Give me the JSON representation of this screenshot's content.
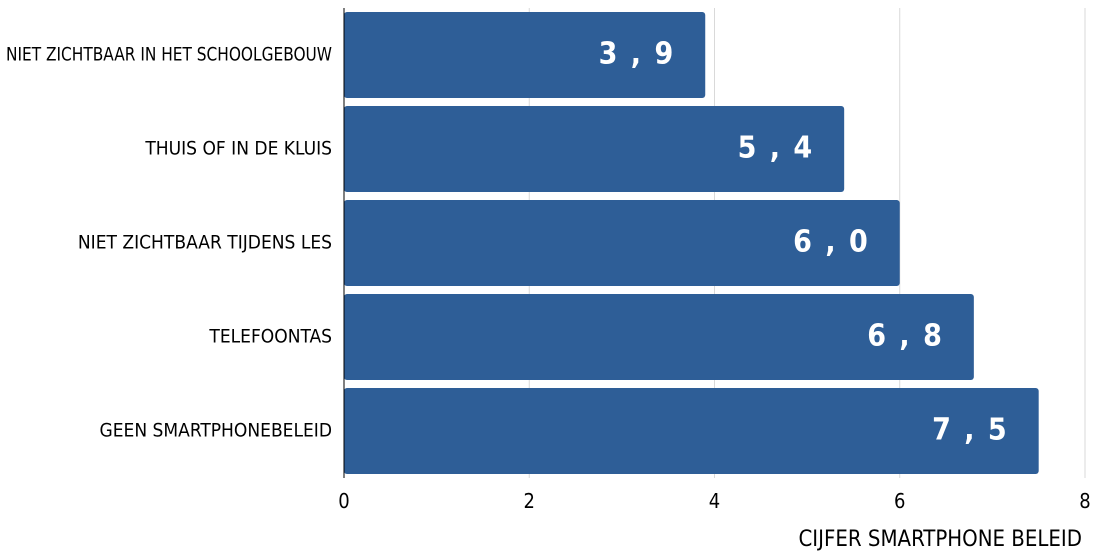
{
  "chart_data": {
    "type": "bar",
    "orientation": "horizontal",
    "categories": [
      "NIET ZICHTBAAR IN HET SCHOOLGEBOUW",
      "THUIS OF IN DE KLUIS",
      "NIET ZICHTBAAR TIJDENS LES",
      "TELEFOONTAS",
      "GEEN SMARTPHONEBELEID"
    ],
    "values": [
      3.9,
      5.4,
      6.0,
      6.8,
      7.5
    ],
    "data_labels": [
      "3 , 9",
      "5 , 4",
      "6 , 0",
      "6 , 8",
      "7 , 5"
    ],
    "xlabel": "CIJFER SMARTPHONE BELEID",
    "ylabel": "",
    "title": "",
    "xlim": [
      0,
      8
    ],
    "xticks": [
      0,
      2,
      4,
      6,
      8
    ],
    "xtick_labels": [
      "0",
      "2",
      "4",
      "6",
      "8"
    ],
    "grid": "vertical",
    "legend": "none",
    "colors": {
      "bar": "#2e5e97",
      "data_label": "#ffffff",
      "grid": "#d9d9d9",
      "text": "#000000"
    }
  }
}
